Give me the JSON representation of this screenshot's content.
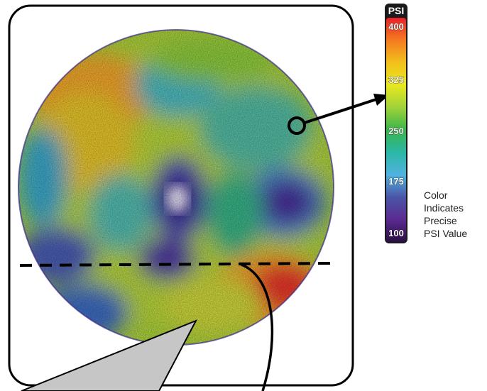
{
  "legend": {
    "title": "PSI",
    "ticks": [
      "400",
      "325",
      "250",
      "175",
      "100"
    ],
    "caption": [
      "Color",
      "Indicates",
      "Precise",
      "PSI Value"
    ],
    "gradient_colors": [
      "#e8202a",
      "#f47b20",
      "#f2c01c",
      "#e9e81e",
      "#9fd23a",
      "#39b54a",
      "#2bb7a6",
      "#4fb3e0",
      "#4a55a8",
      "#5a2a90",
      "#2a0f45"
    ]
  },
  "map": {
    "description_colors": {
      "high": "#e8202a",
      "mid": "#b9d63a",
      "low": "#3a2a95"
    }
  },
  "colors": {
    "frame_border": "#000000",
    "dashed_line": "#000000",
    "pointer_fill": "#c8c8c8"
  }
}
